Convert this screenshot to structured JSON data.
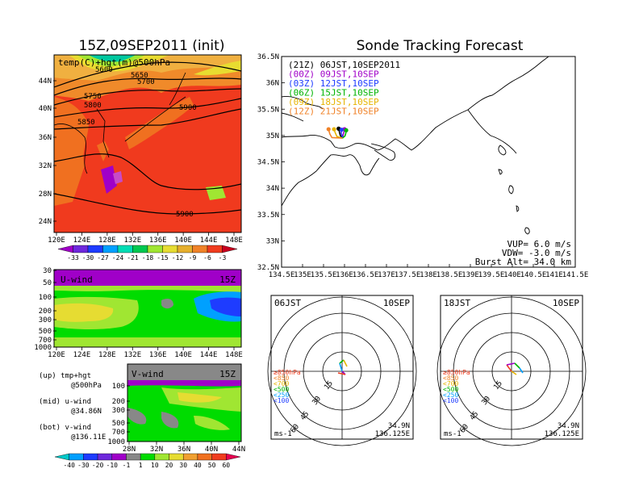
{
  "header": {
    "left_title": "15Z,09SEP2011 (init)",
    "right_title": "Sonde Tracking Forecast"
  },
  "colors": {
    "ocean": "#f03a1e",
    "land_warm": "#f07020",
    "north_orange": "#f0a030",
    "contour": "#000000"
  },
  "chart_data": [
    {
      "type": "heatmap",
      "title": "temp(C)+hgt(m)@500hPa",
      "x_ticks": [
        "120E",
        "124E",
        "128E",
        "132E",
        "136E",
        "140E",
        "144E",
        "148E"
      ],
      "y_ticks": [
        "44N",
        "40N",
        "36N",
        "32N",
        "28N",
        "24N"
      ],
      "contour_labels": [
        "5600",
        "5650",
        "5700",
        "5750",
        "5800",
        "5850",
        "5900",
        "5900"
      ],
      "colorbar_ticks": [
        "-33",
        "-30",
        "-27",
        "-24",
        "-21",
        "-18",
        "-15",
        "-12",
        "-9",
        "-6",
        "-3"
      ],
      "colorbar_colors": [
        "#a000c8",
        "#6e28dc",
        "#1e3cff",
        "#00a0ff",
        "#00dcb4",
        "#00c850",
        "#a0e632",
        "#e6dc32",
        "#e6af2d",
        "#f08228",
        "#f03c1e",
        "#c8001e"
      ]
    },
    {
      "type": "heatmap",
      "title": "U-wind",
      "time_label": "15Z",
      "x_ticks": [
        "120E",
        "124E",
        "128E",
        "132E",
        "136E",
        "140E",
        "144E",
        "148E"
      ],
      "y_ticks": [
        "30",
        "50",
        "100",
        "200",
        "300",
        "500",
        "700",
        "1000"
      ]
    },
    {
      "type": "heatmap",
      "title": "V-wind",
      "time_label": "15Z",
      "x_ticks": [
        "28N",
        "32N",
        "36N",
        "40N",
        "44N"
      ],
      "y_ticks": [
        "100",
        "200",
        "300",
        "500",
        "700",
        "1000"
      ],
      "colorbar_ticks": [
        "-40",
        "-30",
        "-20",
        "-10",
        "-1",
        "1",
        "10",
        "20",
        "30",
        "40",
        "50",
        "60"
      ],
      "colorbar_colors": [
        "#00c8c8",
        "#00a0ff",
        "#1e3cff",
        "#6e28dc",
        "#a000c8",
        "#888888",
        "#00dc00",
        "#a0e632",
        "#e6dc32",
        "#f0a030",
        "#f07020",
        "#f03c1e",
        "#e60050"
      ]
    },
    {
      "type": "line",
      "title": "Sonde Tracking Forecast",
      "x_ticks": [
        "134.5E",
        "135E",
        "135.5E",
        "136E",
        "136.5E",
        "137E",
        "137.5E",
        "138E",
        "138.5E",
        "139E",
        "139.5E",
        "140E",
        "140.5E",
        "141E",
        "141.5E"
      ],
      "y_ticks": [
        "36.5N",
        "36N",
        "35.5N",
        "35N",
        "34.5N",
        "34N",
        "33.5N",
        "33N",
        "32.5N"
      ],
      "xlim": [
        134.5,
        141.5
      ],
      "ylim": [
        32.5,
        36.5
      ],
      "legend": [
        {
          "name": "(21Z)  06JST,10SEP2011",
          "color": "#000000"
        },
        {
          "name": "(00Z)  09JST,10SEP",
          "color": "#a000c8"
        },
        {
          "name": "(03Z)  12JST,10SEP",
          "color": "#1e3cff"
        },
        {
          "name": "(06Z)  15JST,10SEP",
          "color": "#00b400"
        },
        {
          "name": "(09Z)  18JST,10SEP",
          "color": "#e6b400"
        },
        {
          "name": "(12Z)  21JST,10SEP",
          "color": "#f08228"
        }
      ],
      "series": [
        {
          "name": "(21Z)  06JST,10SEP2011",
          "x": [
            135.95,
            135.9,
            135.88,
            135.86
          ],
          "y": [
            34.95,
            35.0,
            35.06,
            35.13
          ]
        },
        {
          "name": "(00Z)  09JST,10SEP",
          "x": [
            135.95,
            135.97,
            135.99,
            136.0
          ],
          "y": [
            34.95,
            35.02,
            35.08,
            35.12
          ]
        },
        {
          "name": "(03Z)  12JST,10SEP",
          "x": [
            135.95,
            135.94,
            135.92,
            135.93
          ],
          "y": [
            34.95,
            35.0,
            35.05,
            35.11
          ]
        },
        {
          "name": "(06Z)  15JST,10SEP",
          "x": [
            135.95,
            136.01,
            136.03,
            136.04
          ],
          "y": [
            34.95,
            34.99,
            35.04,
            35.1
          ]
        },
        {
          "name": "(09Z)  18JST,10SEP",
          "x": [
            135.95,
            135.82,
            135.78,
            135.75
          ],
          "y": [
            34.95,
            34.98,
            35.05,
            35.12
          ]
        },
        {
          "name": "(12Z)  21JST,10SEP",
          "x": [
            135.95,
            135.7,
            135.65,
            135.62
          ],
          "y": [
            34.95,
            34.96,
            35.03,
            35.12
          ]
        }
      ],
      "annotations": [
        "VUP=  6.0 m/s",
        "VDW= -3.0 m/s",
        "Burst Alt= 34.0 km"
      ]
    },
    {
      "type": "line",
      "title": "06JST",
      "date_label": "10SEP",
      "ring_labels": [
        "15",
        "30",
        "45",
        "60"
      ],
      "legend": [
        "≥850hPa",
        "<850",
        "<700",
        "<500",
        "<250",
        "<100"
      ],
      "unit": "ms-1",
      "location": [
        "34.9N",
        "136.125E"
      ]
    },
    {
      "type": "line",
      "title": "18JST",
      "date_label": "10SEP",
      "ring_labels": [
        "15",
        "30",
        "45",
        "60"
      ],
      "legend": [
        "≥850hPa",
        "<850",
        "<700",
        "<500",
        "<250",
        "<100"
      ],
      "unit": "ms-1",
      "location": [
        "34.9N",
        "136.125E"
      ]
    }
  ],
  "side_notes": {
    "up1": "(up) tmp+hgt",
    "up2": "@500hPa",
    "mid1": "(mid) u-wind",
    "mid2": "@34.86N",
    "bot1": "(bot) v-wind",
    "bot2": "@136.11E"
  }
}
